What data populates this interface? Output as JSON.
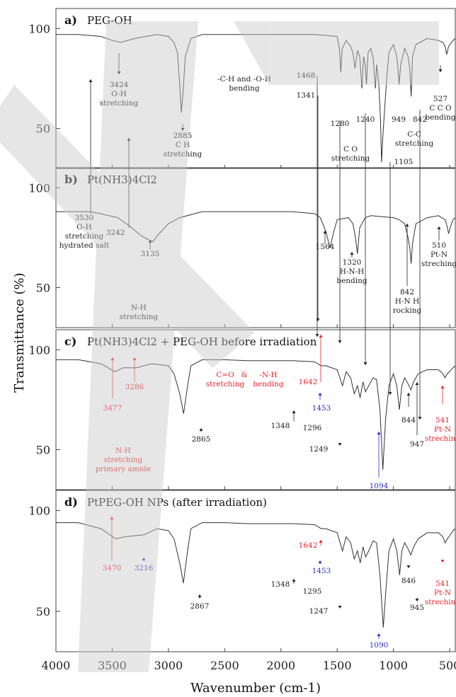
{
  "chart_data": {
    "type": "line",
    "xlabel": "Wavenumber (cm-1)",
    "ylabel": "Transmittance (%)",
    "xlim": [
      4000,
      450
    ],
    "x_ticks": [
      "4000",
      "3500",
      "3000",
      "2500",
      "2000",
      "1500",
      "1000",
      "500"
    ],
    "colors": {
      "black": "#222222",
      "red": "#e8242d",
      "blue": "#2b2bd6",
      "line": "#333333"
    },
    "panels": [
      {
        "label": "a)",
        "title": "PEG-OH",
        "ylim": [
          30,
          110
        ],
        "y_ticks": [
          "100",
          "50"
        ],
        "series": [
          {
            "x": [
              4000,
              3800,
              3600,
              3500,
              3424,
              3300,
              3100,
              3000,
              2950,
              2920,
              2900,
              2885,
              2870,
              2850,
              2800,
              2700,
              2500,
              2300,
              2100,
              1900,
              1700,
              1600,
              1500,
              1480,
              1468,
              1455,
              1420,
              1380,
              1360,
              1341,
              1320,
              1300,
              1280,
              1265,
              1250,
              1240,
              1225,
              1200,
              1180,
              1160,
              1150,
              1130,
              1115,
              1105,
              1095,
              1080,
              1060,
              1040,
              1000,
              970,
              960,
              949,
              935,
              900,
              870,
              855,
              842,
              830,
              800,
              700,
              600,
              560,
              540,
              527,
              510,
              470,
              450
            ],
            "y": [
              97,
              97,
              96,
              94,
              93,
              95,
              97,
              96,
              93,
              88,
              72,
              58,
              68,
              86,
              95,
              97,
              97,
              97,
              97,
              97,
              97,
              96.5,
              96,
              90,
              78,
              90,
              94,
              91,
              88,
              80,
              89,
              86,
              70,
              86,
              82,
              72,
              88,
              90,
              85,
              70,
              82,
              72,
              55,
              33,
              45,
              58,
              75,
              88,
              92,
              86,
              80,
              72,
              82,
              90,
              86,
              80,
              66,
              86,
              92,
              95,
              94,
              93,
              91,
              87,
              91,
              94,
              95
            ]
          }
        ],
        "annotations": [
          {
            "lines": [
              "3424",
              "O-H",
              "stretching"
            ],
            "color": "black"
          },
          {
            "lines": [
              "2885",
              "C H",
              "stretching"
            ],
            "color": "black"
          },
          {
            "lines": [
              "-C-H and -O-H",
              "bending"
            ],
            "color": "black"
          },
          {
            "lines": [
              "1468"
            ],
            "color": "black"
          },
          {
            "lines": [
              "1341"
            ],
            "color": "black"
          },
          {
            "lines": [
              "1280"
            ],
            "color": "black"
          },
          {
            "lines": [
              "1240"
            ],
            "color": "black"
          },
          {
            "lines": [
              "949"
            ],
            "color": "black"
          },
          {
            "lines": [
              "842"
            ],
            "color": "black"
          },
          {
            "lines": [
              "C-C",
              "stretching"
            ],
            "color": "black"
          },
          {
            "lines": [
              "C O",
              "stretching"
            ],
            "color": "black"
          },
          {
            "lines": [
              "1105"
            ],
            "color": "black"
          },
          {
            "lines": [
              "527",
              "C C O",
              "bending"
            ],
            "color": "black"
          }
        ]
      },
      {
        "label": "b)",
        "title": "Pt(NH3)4Cl2",
        "ylim": [
          30,
          110
        ],
        "y_ticks": [
          "100",
          "50"
        ],
        "series": [
          {
            "x": [
              4000,
              3800,
              3700,
              3600,
              3530,
              3450,
              3350,
              3242,
              3180,
              3135,
              3100,
              3000,
              2900,
              2700,
              2500,
              2300,
              2100,
              1900,
              1700,
              1650,
              1600,
              1564,
              1530,
              1500,
              1400,
              1360,
              1340,
              1320,
              1300,
              1250,
              1200,
              1100,
              1000,
              950,
              900,
              870,
              855,
              842,
              830,
              800,
              700,
              600,
              540,
              520,
              510,
              490,
              470,
              450
            ],
            "y": [
              88,
              88,
              88,
              87,
              86,
              85,
              81,
              76,
              74,
              73,
              76,
              82,
              85,
              88,
              88,
              88,
              88,
              88,
              87,
              85,
              78,
              70,
              78,
              84,
              85,
              82,
              76,
              67,
              80,
              85,
              86,
              85.5,
              85,
              84,
              82,
              75,
              70,
              62,
              72,
              82,
              85,
              86,
              84,
              80,
              77,
              81,
              84,
              85
            ]
          }
        ],
        "annotations": [
          {
            "lines": [
              "3530",
              "O-H",
              "stretching",
              "hydrated salt"
            ],
            "color": "black"
          },
          {
            "lines": [
              "3242"
            ],
            "color": "black"
          },
          {
            "lines": [
              "3135"
            ],
            "color": "black"
          },
          {
            "lines": [
              "N-H",
              "stretching"
            ],
            "color": "black"
          },
          {
            "lines": [
              "1564"
            ],
            "color": "black"
          },
          {
            "lines": [
              "1320",
              "H-N-H",
              "bending"
            ],
            "color": "black"
          },
          {
            "lines": [
              "842",
              "H-N H",
              "rocking"
            ],
            "color": "black"
          },
          {
            "lines": [
              "510",
              "Pt-N",
              "streching"
            ],
            "color": "black"
          }
        ]
      },
      {
        "label": "c)",
        "title": "Pt(NH3)4Cl2 + PEG-OH before irradiation",
        "ylim": [
          30,
          110
        ],
        "y_ticks": [
          "100",
          "50"
        ],
        "series": [
          {
            "x": [
              4000,
              3800,
              3600,
              3477,
              3400,
              3286,
              3150,
              3000,
              2950,
              2900,
              2865,
              2830,
              2800,
              2700,
              2500,
              2300,
              2100,
              1900,
              1700,
              1642,
              1600,
              1500,
              1453,
              1420,
              1380,
              1348,
              1320,
              1296,
              1270,
              1249,
              1220,
              1180,
              1150,
              1120,
              1094,
              1070,
              1040,
              1000,
              970,
              947,
              925,
              900,
              870,
              844,
              820,
              780,
              700,
              600,
              560,
              541,
              520,
              470,
              450
            ],
            "y": [
              95,
              95,
              93,
              89,
              91,
              91,
              93,
              92,
              88,
              78,
              68,
              82,
              92,
              95,
              95,
              94.5,
              94.5,
              94.5,
              94,
              92,
              92,
              90,
              82,
              89,
              86,
              78,
              82,
              76,
              84,
              79,
              82,
              86,
              85,
              70,
              40,
              65,
              82,
              88,
              82,
              70,
              82,
              86,
              83,
              80,
              84,
              88,
              90,
              90,
              88,
              86,
              88,
              91,
              92
            ]
          }
        ],
        "annotations": [
          {
            "lines": [
              "3477"
            ],
            "color": "red"
          },
          {
            "lines": [
              "3286"
            ],
            "color": "red"
          },
          {
            "lines": [
              "N-H",
              "stretching",
              "primary amide"
            ],
            "color": "red"
          },
          {
            "lines": [
              "2865"
            ],
            "color": "black"
          },
          {
            "lines": [
              "C=O",
              "stretching"
            ],
            "color": "red"
          },
          {
            "lines": [
              "&"
            ],
            "color": "red"
          },
          {
            "lines": [
              "-N-H",
              "bending"
            ],
            "color": "red"
          },
          {
            "lines": [
              "1642"
            ],
            "color": "red"
          },
          {
            "lines": [
              "1453"
            ],
            "color": "blue"
          },
          {
            "lines": [
              "1348"
            ],
            "color": "black"
          },
          {
            "lines": [
              "1296"
            ],
            "color": "black"
          },
          {
            "lines": [
              "1249"
            ],
            "color": "black"
          },
          {
            "lines": [
              "1094"
            ],
            "color": "blue"
          },
          {
            "lines": [
              "947"
            ],
            "color": "black"
          },
          {
            "lines": [
              "844"
            ],
            "color": "black"
          },
          {
            "lines": [
              "541",
              "Pt-N",
              "streching"
            ],
            "color": "red"
          }
        ]
      },
      {
        "label": "d)",
        "title": "PtPEG-OH NPs (after irradiation)",
        "ylim": [
          30,
          110
        ],
        "y_ticks": [
          "100",
          "50"
        ],
        "series": [
          {
            "x": [
              4000,
              3800,
              3600,
              3470,
              3380,
              3216,
              3100,
              3000,
              2950,
              2900,
              2867,
              2830,
              2800,
              2700,
              2500,
              2300,
              2100,
              1900,
              1700,
              1642,
              1600,
              1500,
              1453,
              1420,
              1380,
              1348,
              1320,
              1295,
              1270,
              1247,
              1220,
              1180,
              1150,
              1120,
              1090,
              1065,
              1040,
              1000,
              970,
              945,
              925,
              900,
              870,
              846,
              820,
              780,
              700,
              600,
              560,
              541,
              520,
              470,
              450
            ],
            "y": [
              94,
              94,
              91,
              86,
              87,
              88,
              91,
              90,
              86,
              74,
              64,
              80,
              91,
              94,
              94,
              93.5,
              93.5,
              93.5,
              93,
              91,
              91,
              89,
              80,
              87,
              84,
              76,
              80,
              74,
              82,
              77,
              80,
              85,
              84,
              68,
              42,
              62,
              80,
              86,
              80,
              68,
              80,
              84,
              81,
              78,
              82,
              86,
              89,
              89,
              87,
              84,
              86,
              90,
              91
            ]
          }
        ],
        "annotations": [
          {
            "lines": [
              "3470"
            ],
            "color": "red"
          },
          {
            "lines": [
              "3216"
            ],
            "color": "blue"
          },
          {
            "lines": [
              "2867"
            ],
            "color": "black"
          },
          {
            "lines": [
              "1642"
            ],
            "color": "red"
          },
          {
            "lines": [
              "1453"
            ],
            "color": "blue"
          },
          {
            "lines": [
              "1348"
            ],
            "color": "black"
          },
          {
            "lines": [
              "1295"
            ],
            "color": "black"
          },
          {
            "lines": [
              "1247"
            ],
            "color": "black"
          },
          {
            "lines": [
              "1090"
            ],
            "color": "blue"
          },
          {
            "lines": [
              "945"
            ],
            "color": "black"
          },
          {
            "lines": [
              "846"
            ],
            "color": "black"
          },
          {
            "lines": [
              "541",
              "Pt-N",
              "streching"
            ],
            "color": "red"
          }
        ]
      }
    ]
  }
}
